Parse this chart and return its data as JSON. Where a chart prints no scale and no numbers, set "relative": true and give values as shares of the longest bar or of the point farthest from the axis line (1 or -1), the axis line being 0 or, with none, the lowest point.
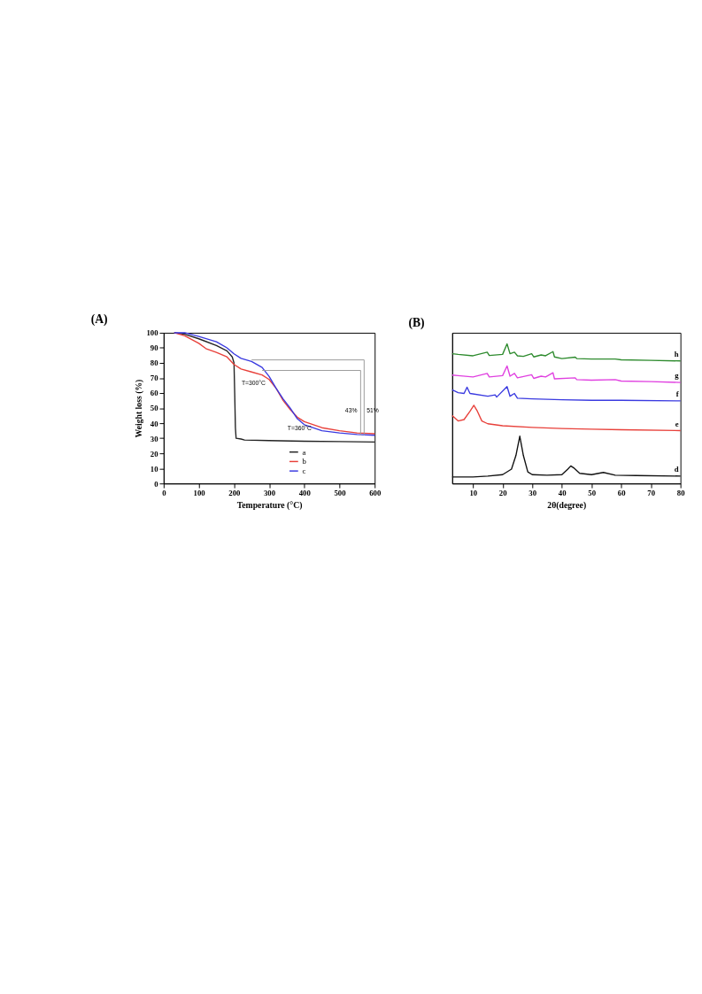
{
  "chart_data": [
    {
      "type": "line",
      "title": "(A)",
      "xlabel": "Temperature (°C)",
      "ylabel": "Weight loss (%)",
      "xlim": [
        0,
        600
      ],
      "ylim": [
        0,
        100
      ],
      "xticks": [
        0,
        100,
        200,
        300,
        400,
        500,
        600
      ],
      "yticks": [
        0,
        10,
        20,
        30,
        40,
        50,
        60,
        70,
        80,
        90,
        100
      ],
      "grid": false,
      "legend": "bottom",
      "line_style": "solid",
      "marker": "none",
      "annotations": [
        {
          "text": "T=300°C",
          "x": 285,
          "y": 72
        },
        {
          "text": "T=360°C",
          "x": 352,
          "y": 50
        },
        {
          "text": "43%",
          "x": 560,
          "y": 48
        },
        {
          "text": "51%",
          "x": 570,
          "y": 48
        }
      ],
      "series": [
        {
          "name": "a",
          "color": "#222222",
          "x": [
            30,
            60,
            100,
            150,
            180,
            195,
            200,
            202,
            204,
            206,
            220,
            230,
            300,
            400,
            500,
            600
          ],
          "values": [
            100,
            99,
            96,
            91.5,
            88,
            84,
            80,
            60,
            37,
            30,
            29.5,
            28.8,
            28.5,
            28,
            27.8,
            27.5
          ]
        },
        {
          "name": "b",
          "color": "#e8403a",
          "x": [
            30,
            60,
            100,
            120,
            150,
            180,
            200,
            220,
            250,
            280,
            300,
            320,
            340,
            360,
            380,
            400,
            450,
            500,
            550,
            600
          ],
          "values": [
            100,
            98,
            93,
            89.5,
            87,
            84,
            79,
            76,
            74,
            72,
            69,
            63,
            55,
            49,
            44,
            41,
            37,
            35,
            33.5,
            33
          ]
        },
        {
          "name": "c",
          "color": "#3a3ae0",
          "x": [
            30,
            60,
            100,
            150,
            180,
            200,
            220,
            250,
            280,
            300,
            320,
            340,
            360,
            380,
            400,
            450,
            500,
            550,
            600
          ],
          "values": [
            100,
            100,
            97.5,
            94,
            90,
            86,
            83,
            81,
            77,
            71,
            63,
            56,
            50,
            43,
            39,
            35,
            33.5,
            32.5,
            32
          ]
        },
        {
          "color": "#9a9a9a",
          "x": [
            280,
            560,
            560
          ],
          "values": [
            75,
            75,
            32
          ]
        },
        {
          "color": "#9a9a9a",
          "x": [
            250,
            570,
            570
          ],
          "values": [
            82,
            82,
            32
          ]
        }
      ]
    },
    {
      "type": "line",
      "title": "(B)",
      "xlabel": "2θ(degree)",
      "xlim": [
        3,
        80
      ],
      "xticks": [
        10,
        20,
        30,
        40,
        50,
        60,
        70,
        80
      ],
      "relative": true,
      "tick_labels": "x",
      "grid": false,
      "legend": false,
      "line_style": "solid",
      "marker": "none",
      "series": [
        {
          "name": "h",
          "color": "#2e8b2e",
          "x": [
            3,
            5,
            10,
            14.8,
            15.5,
            20,
            21.5,
            22.5,
            24,
            25,
            27,
            29.8,
            30.5,
            33,
            34.5,
            37,
            37.5,
            40,
            44.5,
            45,
            50,
            58,
            60,
            70,
            80
          ],
          "values": [
            0.93,
            0.925,
            0.915,
            0.941,
            0.917,
            0.925,
            1.0,
            0.93,
            0.941,
            0.915,
            0.911,
            0.93,
            0.907,
            0.921,
            0.915,
            0.945,
            0.907,
            0.895,
            0.905,
            0.895,
            0.892,
            0.892,
            0.886,
            0.882,
            0.878
          ]
        },
        {
          "name": "g",
          "color": "#e040e0",
          "x": [
            3,
            5,
            10,
            14.8,
            15.5,
            20,
            21.5,
            22.5,
            24,
            25,
            29.8,
            30.5,
            33,
            34.5,
            37,
            37.5,
            44.5,
            45,
            50,
            58,
            60,
            70,
            80
          ],
          "values": [
            0.777,
            0.773,
            0.763,
            0.789,
            0.763,
            0.773,
            0.842,
            0.769,
            0.789,
            0.757,
            0.779,
            0.753,
            0.769,
            0.763,
            0.793,
            0.75,
            0.757,
            0.744,
            0.74,
            0.744,
            0.734,
            0.73,
            0.724
          ]
        },
        {
          "name": "f",
          "color": "#3a3ae0",
          "x": [
            3,
            5,
            7,
            8,
            9,
            15,
            17.5,
            18,
            21.5,
            22.5,
            24,
            25,
            30,
            40,
            50,
            60,
            80
          ],
          "values": [
            0.671,
            0.651,
            0.645,
            0.69,
            0.645,
            0.625,
            0.635,
            0.619,
            0.694,
            0.625,
            0.645,
            0.611,
            0.606,
            0.6,
            0.596,
            0.596,
            0.592
          ]
        },
        {
          "name": "e",
          "color": "#e8403a",
          "x": [
            3,
            5,
            7,
            9,
            10.3,
            11.5,
            13,
            15,
            20,
            30,
            40,
            50,
            60,
            80
          ],
          "values": [
            0.487,
            0.448,
            0.458,
            0.517,
            0.56,
            0.517,
            0.448,
            0.428,
            0.414,
            0.402,
            0.394,
            0.389,
            0.385,
            0.379
          ]
        },
        {
          "name": "d",
          "color": "#111111",
          "x": [
            3,
            10,
            15,
            20,
            23,
            24.5,
            25.8,
            27,
            28.5,
            30,
            35,
            40,
            42,
            43,
            44,
            46,
            50,
            54,
            58,
            65,
            80
          ],
          "values": [
            0.047,
            0.047,
            0.053,
            0.063,
            0.103,
            0.201,
            0.339,
            0.201,
            0.083,
            0.063,
            0.059,
            0.063,
            0.103,
            0.126,
            0.112,
            0.073,
            0.063,
            0.079,
            0.059,
            0.057,
            0.053
          ]
        }
      ]
    }
  ]
}
